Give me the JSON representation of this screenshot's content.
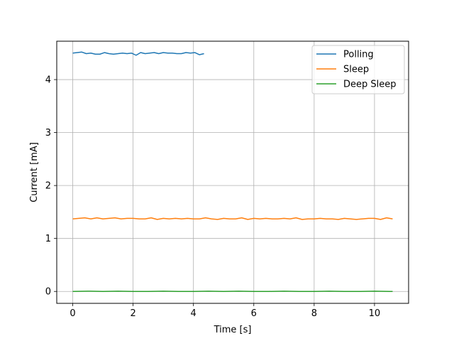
{
  "chart_data": {
    "type": "line",
    "title": "",
    "xlabel": "Time [s]",
    "ylabel": "Current [mA]",
    "xlim": [
      -0.53,
      11.13
    ],
    "ylim": [
      -0.225,
      4.725
    ],
    "xticks": [
      0,
      2,
      4,
      6,
      8,
      10
    ],
    "yticks": [
      0,
      1,
      2,
      3,
      4
    ],
    "grid": true,
    "legend_position": "top-right",
    "series": [
      {
        "name": "Polling",
        "color": "#1f77b4",
        "x": [
          0,
          0.15,
          0.3,
          0.45,
          0.6,
          0.75,
          0.9,
          1.05,
          1.2,
          1.35,
          1.5,
          1.65,
          1.8,
          1.95,
          2.1,
          2.25,
          2.4,
          2.55,
          2.7,
          2.85,
          3.0,
          3.15,
          3.3,
          3.45,
          3.6,
          3.75,
          3.9,
          4.05,
          4.2,
          4.35
        ],
        "y": [
          4.5,
          4.51,
          4.52,
          4.49,
          4.5,
          4.48,
          4.48,
          4.51,
          4.49,
          4.48,
          4.49,
          4.5,
          4.49,
          4.5,
          4.46,
          4.51,
          4.49,
          4.5,
          4.51,
          4.49,
          4.51,
          4.5,
          4.5,
          4.49,
          4.49,
          4.51,
          4.5,
          4.51,
          4.47,
          4.49
        ]
      },
      {
        "name": "Sleep",
        "color": "#ff7f0e",
        "x": [
          0,
          0.2,
          0.4,
          0.6,
          0.8,
          1.0,
          1.2,
          1.4,
          1.6,
          1.8,
          2.0,
          2.2,
          2.4,
          2.6,
          2.8,
          3.0,
          3.2,
          3.4,
          3.6,
          3.8,
          4.0,
          4.2,
          4.4,
          4.6,
          4.8,
          5.0,
          5.2,
          5.4,
          5.6,
          5.8,
          6.0,
          6.2,
          6.4,
          6.6,
          6.8,
          7.0,
          7.2,
          7.4,
          7.6,
          7.8,
          8.0,
          8.2,
          8.4,
          8.6,
          8.8,
          9.0,
          9.2,
          9.4,
          9.6,
          9.8,
          10.0,
          10.2,
          10.4,
          10.6
        ],
        "y": [
          1.37,
          1.38,
          1.39,
          1.37,
          1.39,
          1.37,
          1.38,
          1.39,
          1.37,
          1.38,
          1.38,
          1.37,
          1.37,
          1.39,
          1.36,
          1.38,
          1.37,
          1.38,
          1.37,
          1.38,
          1.37,
          1.37,
          1.39,
          1.37,
          1.36,
          1.38,
          1.37,
          1.37,
          1.39,
          1.36,
          1.38,
          1.37,
          1.38,
          1.37,
          1.37,
          1.38,
          1.37,
          1.39,
          1.36,
          1.37,
          1.37,
          1.38,
          1.37,
          1.37,
          1.36,
          1.38,
          1.37,
          1.36,
          1.37,
          1.38,
          1.38,
          1.36,
          1.39,
          1.37
        ]
      },
      {
        "name": "Deep Sleep",
        "color": "#2ca02c",
        "x": [
          0,
          0.5,
          1.0,
          1.5,
          2.0,
          2.5,
          3.0,
          3.5,
          4.0,
          4.5,
          5.0,
          5.5,
          6.0,
          6.5,
          7.0,
          7.5,
          8.0,
          8.5,
          9.0,
          9.5,
          10.0,
          10.5,
          10.6
        ],
        "y": [
          0.0,
          0.005,
          0.0,
          0.005,
          0.0,
          0.0,
          0.005,
          0.0,
          0.0,
          0.005,
          0.0,
          0.005,
          0.0,
          0.0,
          0.005,
          0.0,
          0.0,
          0.005,
          0.0,
          0.0,
          0.005,
          0.0,
          0.0
        ]
      }
    ]
  }
}
